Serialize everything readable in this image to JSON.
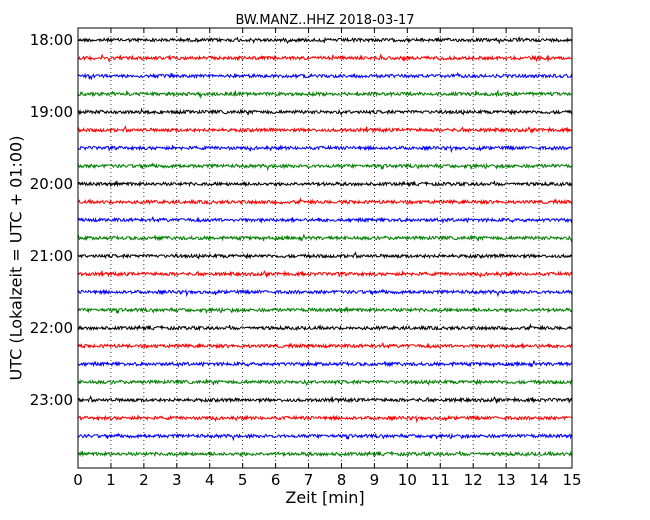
{
  "chart_data": {
    "type": "line",
    "title": "BW.MANZ..HHZ 2018-03-17",
    "xlabel": "Zeit  [min]",
    "ylabel": "UTC (Lokalzeit = UTC + 01:00)",
    "xlim": [
      0,
      15
    ],
    "x_ticks": [
      0,
      1,
      2,
      3,
      4,
      5,
      6,
      7,
      8,
      9,
      10,
      11,
      12,
      13,
      14,
      15
    ],
    "x_tick_labels": [
      "0",
      "1",
      "2",
      "3",
      "4",
      "5",
      "6",
      "7",
      "8",
      "9",
      "10",
      "11",
      "12",
      "13",
      "14",
      "15"
    ],
    "y_tick_labels": [
      "18:00",
      "19:00",
      "20:00",
      "21:00",
      "22:00",
      "23:00"
    ],
    "y_tick_positions_hours": [
      18,
      19,
      20,
      21,
      22,
      23
    ],
    "trace_interval_minutes": 15,
    "trace_count": 24,
    "trace_start_hour": 18,
    "trace_colors": [
      "#000000",
      "#ff0000",
      "#0000ff",
      "#008000"
    ],
    "grid": "vertical-dotted"
  }
}
